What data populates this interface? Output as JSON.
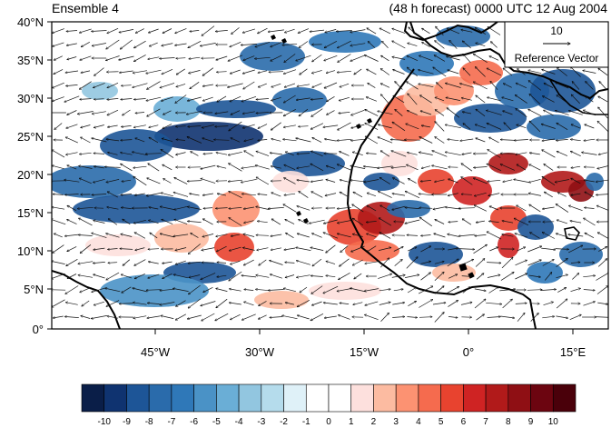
{
  "header": {
    "left": "Ensemble 4",
    "right": "(48 h forecast) 0000 UTC 12 Aug 2004"
  },
  "map": {
    "lat_labels": [
      "40°N",
      "35°N",
      "30°N",
      "25°N",
      "20°N",
      "15°N",
      "10°N",
      "5°N",
      "0°"
    ],
    "lon_labels": [
      "45°W",
      "30°W",
      "15°W",
      "0°",
      "15°E"
    ],
    "reference_vector": {
      "magnitude": "10",
      "label": "Reference Vector"
    }
  },
  "colorbar": {
    "labels": [
      "-10",
      "-9",
      "-8",
      "-7",
      "-6",
      "-5",
      "-4",
      "-3",
      "-2",
      "-1",
      "0",
      "1",
      "2",
      "3",
      "4",
      "5",
      "6",
      "7",
      "8",
      "9",
      "10"
    ],
    "colors": [
      "#0a1e48",
      "#0f3370",
      "#1d5597",
      "#2a6bab",
      "#2f78b8",
      "#4a92c6",
      "#6aaed6",
      "#92c6e0",
      "#b5dcec",
      "#dff1f8",
      "#ffffff",
      "#ffffff",
      "#fde0dd",
      "#fcbba1",
      "#fc9272",
      "#f56b4e",
      "#e8432f",
      "#cf2323",
      "#b11a1a",
      "#8f0f14",
      "#6c0510",
      "#4a000a"
    ]
  }
}
